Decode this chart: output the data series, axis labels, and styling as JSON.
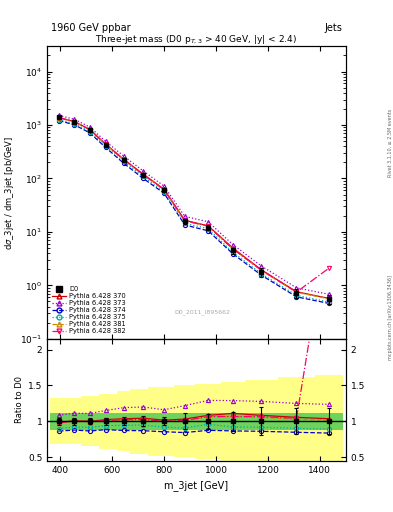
{
  "title_top": "1960 GeV ppbar",
  "title_top_right": "Jets",
  "plot_title": "Three-jet mass (D0 p$_{T,3}$ > 40 GeV, |y| < 2.4)",
  "xlabel": "m_3jet [GeV]",
  "ylabel_top": "dσ_3jet / dm_3jet [pb/GeV]",
  "ylabel_bottom": "Ratio to D0",
  "watermark": "D0_2011_I895662",
  "right_label": "mcplots.cern.ch [arXiv:1306.3436]",
  "right_label2": "Rivet 3.1.10, ≥ 2.5M events",
  "x_centers": [
    395,
    455,
    515,
    575,
    645,
    720,
    800,
    880,
    970,
    1065,
    1175,
    1310,
    1435
  ],
  "x_edges": [
    360,
    430,
    480,
    550,
    620,
    670,
    740,
    840,
    920,
    1020,
    1110,
    1240,
    1380,
    1490
  ],
  "d0_y": [
    1400,
    1150,
    820,
    430,
    220,
    115,
    62,
    16,
    12,
    4.5,
    1.8,
    0.72,
    0.55
  ],
  "d0_yerr": [
    70,
    55,
    35,
    22,
    12,
    8,
    3.5,
    1.8,
    1.2,
    0.6,
    0.35,
    0.13,
    0.1
  ],
  "py370_y": [
    1380,
    1160,
    820,
    440,
    228,
    120,
    63,
    16.5,
    13,
    5.0,
    1.95,
    0.76,
    0.57
  ],
  "py373_y": [
    1520,
    1280,
    910,
    495,
    262,
    138,
    72,
    19.5,
    15.5,
    5.8,
    2.3,
    0.9,
    0.68
  ],
  "py374_y": [
    1210,
    1010,
    710,
    380,
    192,
    100,
    53,
    13.5,
    10.5,
    3.9,
    1.55,
    0.61,
    0.46
  ],
  "py375_y": [
    1260,
    1060,
    750,
    404,
    208,
    109,
    57,
    14.5,
    11.5,
    4.15,
    1.65,
    0.65,
    0.49
  ],
  "py381_y": [
    1370,
    1150,
    815,
    435,
    224,
    117,
    62,
    16.2,
    12.8,
    4.8,
    1.9,
    0.74,
    0.56
  ],
  "py382_y": [
    1370,
    1155,
    818,
    436,
    225,
    118,
    62,
    16.2,
    12.8,
    4.8,
    1.92,
    0.75,
    2.1
  ],
  "green_band_lo": [
    0.88,
    0.88,
    0.88,
    0.88,
    0.88,
    0.88,
    0.88,
    0.88,
    0.88,
    0.88,
    0.88,
    0.88,
    0.88
  ],
  "green_band_hi": [
    1.12,
    1.12,
    1.12,
    1.12,
    1.12,
    1.12,
    1.12,
    1.12,
    1.12,
    1.12,
    1.12,
    1.12,
    1.12
  ],
  "yellow_band_lo": [
    0.68,
    0.68,
    0.65,
    0.62,
    0.58,
    0.55,
    0.52,
    0.5,
    0.48,
    0.45,
    0.42,
    0.38,
    0.35
  ],
  "yellow_band_hi": [
    1.32,
    1.32,
    1.35,
    1.38,
    1.42,
    1.45,
    1.48,
    1.5,
    1.52,
    1.55,
    1.58,
    1.62,
    1.65
  ],
  "colors": {
    "d0": "#000000",
    "py370": "#cc0000",
    "py373": "#9900cc",
    "py374": "#0000cc",
    "py375": "#00aaaa",
    "py381": "#cc8800",
    "py382": "#ff0066"
  },
  "linestyles": {
    "py370": "-",
    "py373": ":",
    "py374": "--",
    "py375": ":",
    "py381": "--",
    "py382": "-."
  },
  "markers": {
    "py370": "^",
    "py373": "^",
    "py374": "o",
    "py375": "o",
    "py381": "^",
    "py382": "v"
  }
}
